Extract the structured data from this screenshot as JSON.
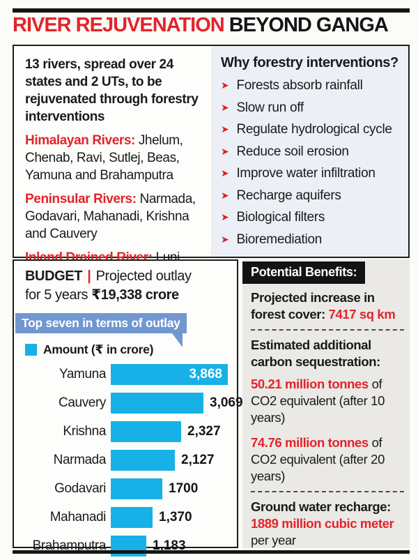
{
  "header": {
    "title_red": "RIVER REJUVENATION",
    "title_black": "BEYOND GANGA"
  },
  "overview": {
    "intro": "13 rivers, spread over 24 states and 2 UTs, to be rejuvenated through forestry interventions",
    "river_groups": [
      {
        "label": "Himalayan Rivers:",
        "text": " Jhelum, Chenab, Ravi, Sutlej, Beas, Yamuna and Brahamputra"
      },
      {
        "label": "Peninsular Rivers:",
        "text": " Narmada, Godavari, Mahanadi, Krishna and Cauvery"
      },
      {
        "label": "Inland Drained River:",
        "text": " Luni"
      }
    ]
  },
  "why": {
    "heading": "Why forestry interventions?",
    "items": [
      "Forests absorb rainfall",
      "Slow run off",
      "Regulate hydrological cycle",
      "Reduce soil erosion",
      "Improve water infiltration",
      "Recharge aquifers",
      "Biological filters",
      "Bioremediation"
    ]
  },
  "budget": {
    "label": "BUDGET",
    "pipe": "|",
    "line1_rest": "Projected outlay",
    "line2_prefix": "for 5 years",
    "amount": "₹19,338 crore",
    "banner": "Top seven in terms of outlay",
    "legend": "Amount (₹ in crore)"
  },
  "chart_data": {
    "type": "bar",
    "orientation": "horizontal",
    "title": "Top seven in terms of outlay",
    "legend": "Amount (₹ in crore)",
    "unit": "₹ crore",
    "categories": [
      "Yamuna",
      "Cauvery",
      "Krishna",
      "Narmada",
      "Godavari",
      "Mahanadi",
      "Brahamputra"
    ],
    "values": [
      3868,
      3069,
      2327,
      2127,
      1700,
      1370,
      1183
    ],
    "value_labels": [
      "3,868",
      "3,069",
      "2,327",
      "2,127",
      "1700",
      "1,370",
      "1,183"
    ],
    "labels_inside": [
      true,
      false,
      false,
      false,
      false,
      false,
      false
    ],
    "xlim": [
      0,
      3868
    ],
    "bar_color": "#17b1e8",
    "grid": false,
    "legend_position": "top-left"
  },
  "benefits": {
    "heading": "Potential Benefits:",
    "forest": {
      "bold": "Projected increase in forest cover: ",
      "red": "7417 sq km"
    },
    "carbon_heading": "Estimated additional carbon sequestration:",
    "carbon_items": [
      {
        "red": "50.21 million tonnes",
        "rest": " of CO2 equivalent (after 10 years)"
      },
      {
        "red": "74.76 million tonnes",
        "rest": " of CO2 equivalent (after 20 years)"
      }
    ],
    "groundwater": {
      "bold": "Ground water recharge:",
      "red": "1889 million cubic meter",
      "rest": "per year"
    }
  },
  "colors": {
    "accent_red": "#e2242b",
    "bar_cyan": "#17b1e8",
    "banner_blue": "#7197d0",
    "top_right_panel": "#edeff6",
    "bottom_right_panel": "#eae9e5",
    "ink": "#161616"
  }
}
